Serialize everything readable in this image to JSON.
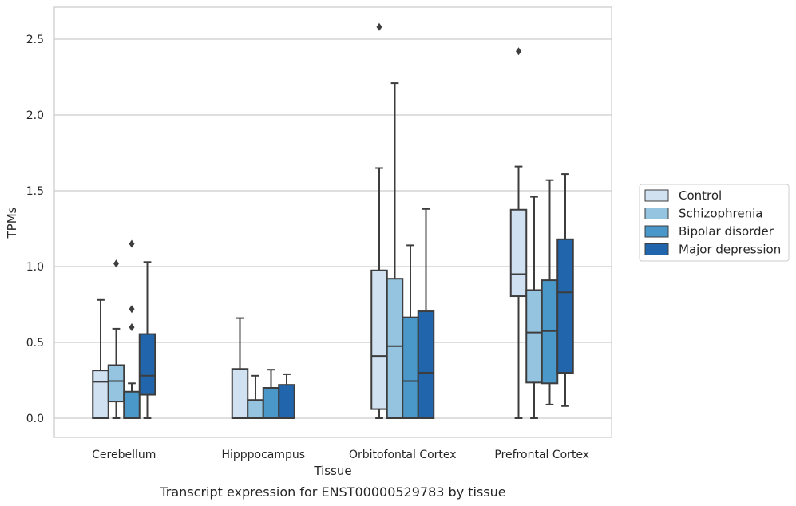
{
  "chart_data": {
    "type": "box",
    "caption": "Transcript expression for ENST00000529783 by tissue",
    "xlabel": "Tissue",
    "ylabel": "TPMs",
    "ylim": [
      -0.12,
      2.72
    ],
    "yticks": [
      0.0,
      0.5,
      1.0,
      1.5,
      2.0,
      2.5
    ],
    "ytick_labels": [
      "0.0",
      "0.5",
      "1.0",
      "1.5",
      "2.0",
      "2.5"
    ],
    "categories": [
      "Cerebellum",
      "Hipppocampus",
      "Orbitofontal Cortex",
      "Prefrontal Cortex"
    ],
    "grid": "horizontal",
    "legend_position": "right",
    "series": [
      {
        "name": "Control",
        "color": "#d0e1f2",
        "boxes": [
          {
            "whislo": 0.0,
            "q1": 0.0,
            "med": 0.24,
            "q3": 0.315,
            "whishi": 0.78,
            "fliers": []
          },
          {
            "whislo": 0.0,
            "q1": 0.0,
            "med": 0.0,
            "q3": 0.325,
            "whishi": 0.66,
            "fliers": []
          },
          {
            "whislo": 0.0,
            "q1": 0.06,
            "med": 0.41,
            "q3": 0.975,
            "whishi": 1.65,
            "fliers": [
              2.58
            ]
          },
          {
            "whislo": 0.0,
            "q1": 0.805,
            "med": 0.95,
            "q3": 1.375,
            "whishi": 1.66,
            "fliers": [
              2.42
            ]
          }
        ]
      },
      {
        "name": "Schizophrenia",
        "color": "#94c4df",
        "boxes": [
          {
            "whislo": 0.0,
            "q1": 0.11,
            "med": 0.245,
            "q3": 0.35,
            "whishi": 0.59,
            "fliers": [
              1.02
            ]
          },
          {
            "whislo": 0.0,
            "q1": 0.0,
            "med": 0.0,
            "q3": 0.12,
            "whishi": 0.28,
            "fliers": []
          },
          {
            "whislo": 0.0,
            "q1": 0.0,
            "med": 0.475,
            "q3": 0.92,
            "whishi": 2.21,
            "fliers": []
          },
          {
            "whislo": 0.0,
            "q1": 0.235,
            "med": 0.565,
            "q3": 0.845,
            "whishi": 1.46,
            "fliers": []
          }
        ]
      },
      {
        "name": "Bipolar disorder",
        "color": "#4a98c9",
        "boxes": [
          {
            "whislo": 0.0,
            "q1": 0.0,
            "med": 0.0,
            "q3": 0.175,
            "whishi": 0.23,
            "fliers": [
              0.6,
              0.72,
              1.15
            ]
          },
          {
            "whislo": 0.0,
            "q1": 0.0,
            "med": 0.0,
            "q3": 0.2,
            "whishi": 0.32,
            "fliers": []
          },
          {
            "whislo": 0.0,
            "q1": 0.0,
            "med": 0.245,
            "q3": 0.665,
            "whishi": 1.14,
            "fliers": []
          },
          {
            "whislo": 0.09,
            "q1": 0.23,
            "med": 0.575,
            "q3": 0.91,
            "whishi": 1.57,
            "fliers": []
          }
        ]
      },
      {
        "name": "Major depression",
        "color": "#2166ac",
        "boxes": [
          {
            "whislo": 0.0,
            "q1": 0.155,
            "med": 0.28,
            "q3": 0.555,
            "whishi": 1.03,
            "fliers": []
          },
          {
            "whislo": 0.0,
            "q1": 0.0,
            "med": 0.0,
            "q3": 0.22,
            "whishi": 0.29,
            "fliers": []
          },
          {
            "whislo": 0.0,
            "q1": 0.0,
            "med": 0.3,
            "q3": 0.705,
            "whishi": 1.38,
            "fliers": []
          },
          {
            "whislo": 0.08,
            "q1": 0.3,
            "med": 0.83,
            "q3": 1.18,
            "whishi": 1.61,
            "fliers": []
          }
        ]
      }
    ]
  }
}
